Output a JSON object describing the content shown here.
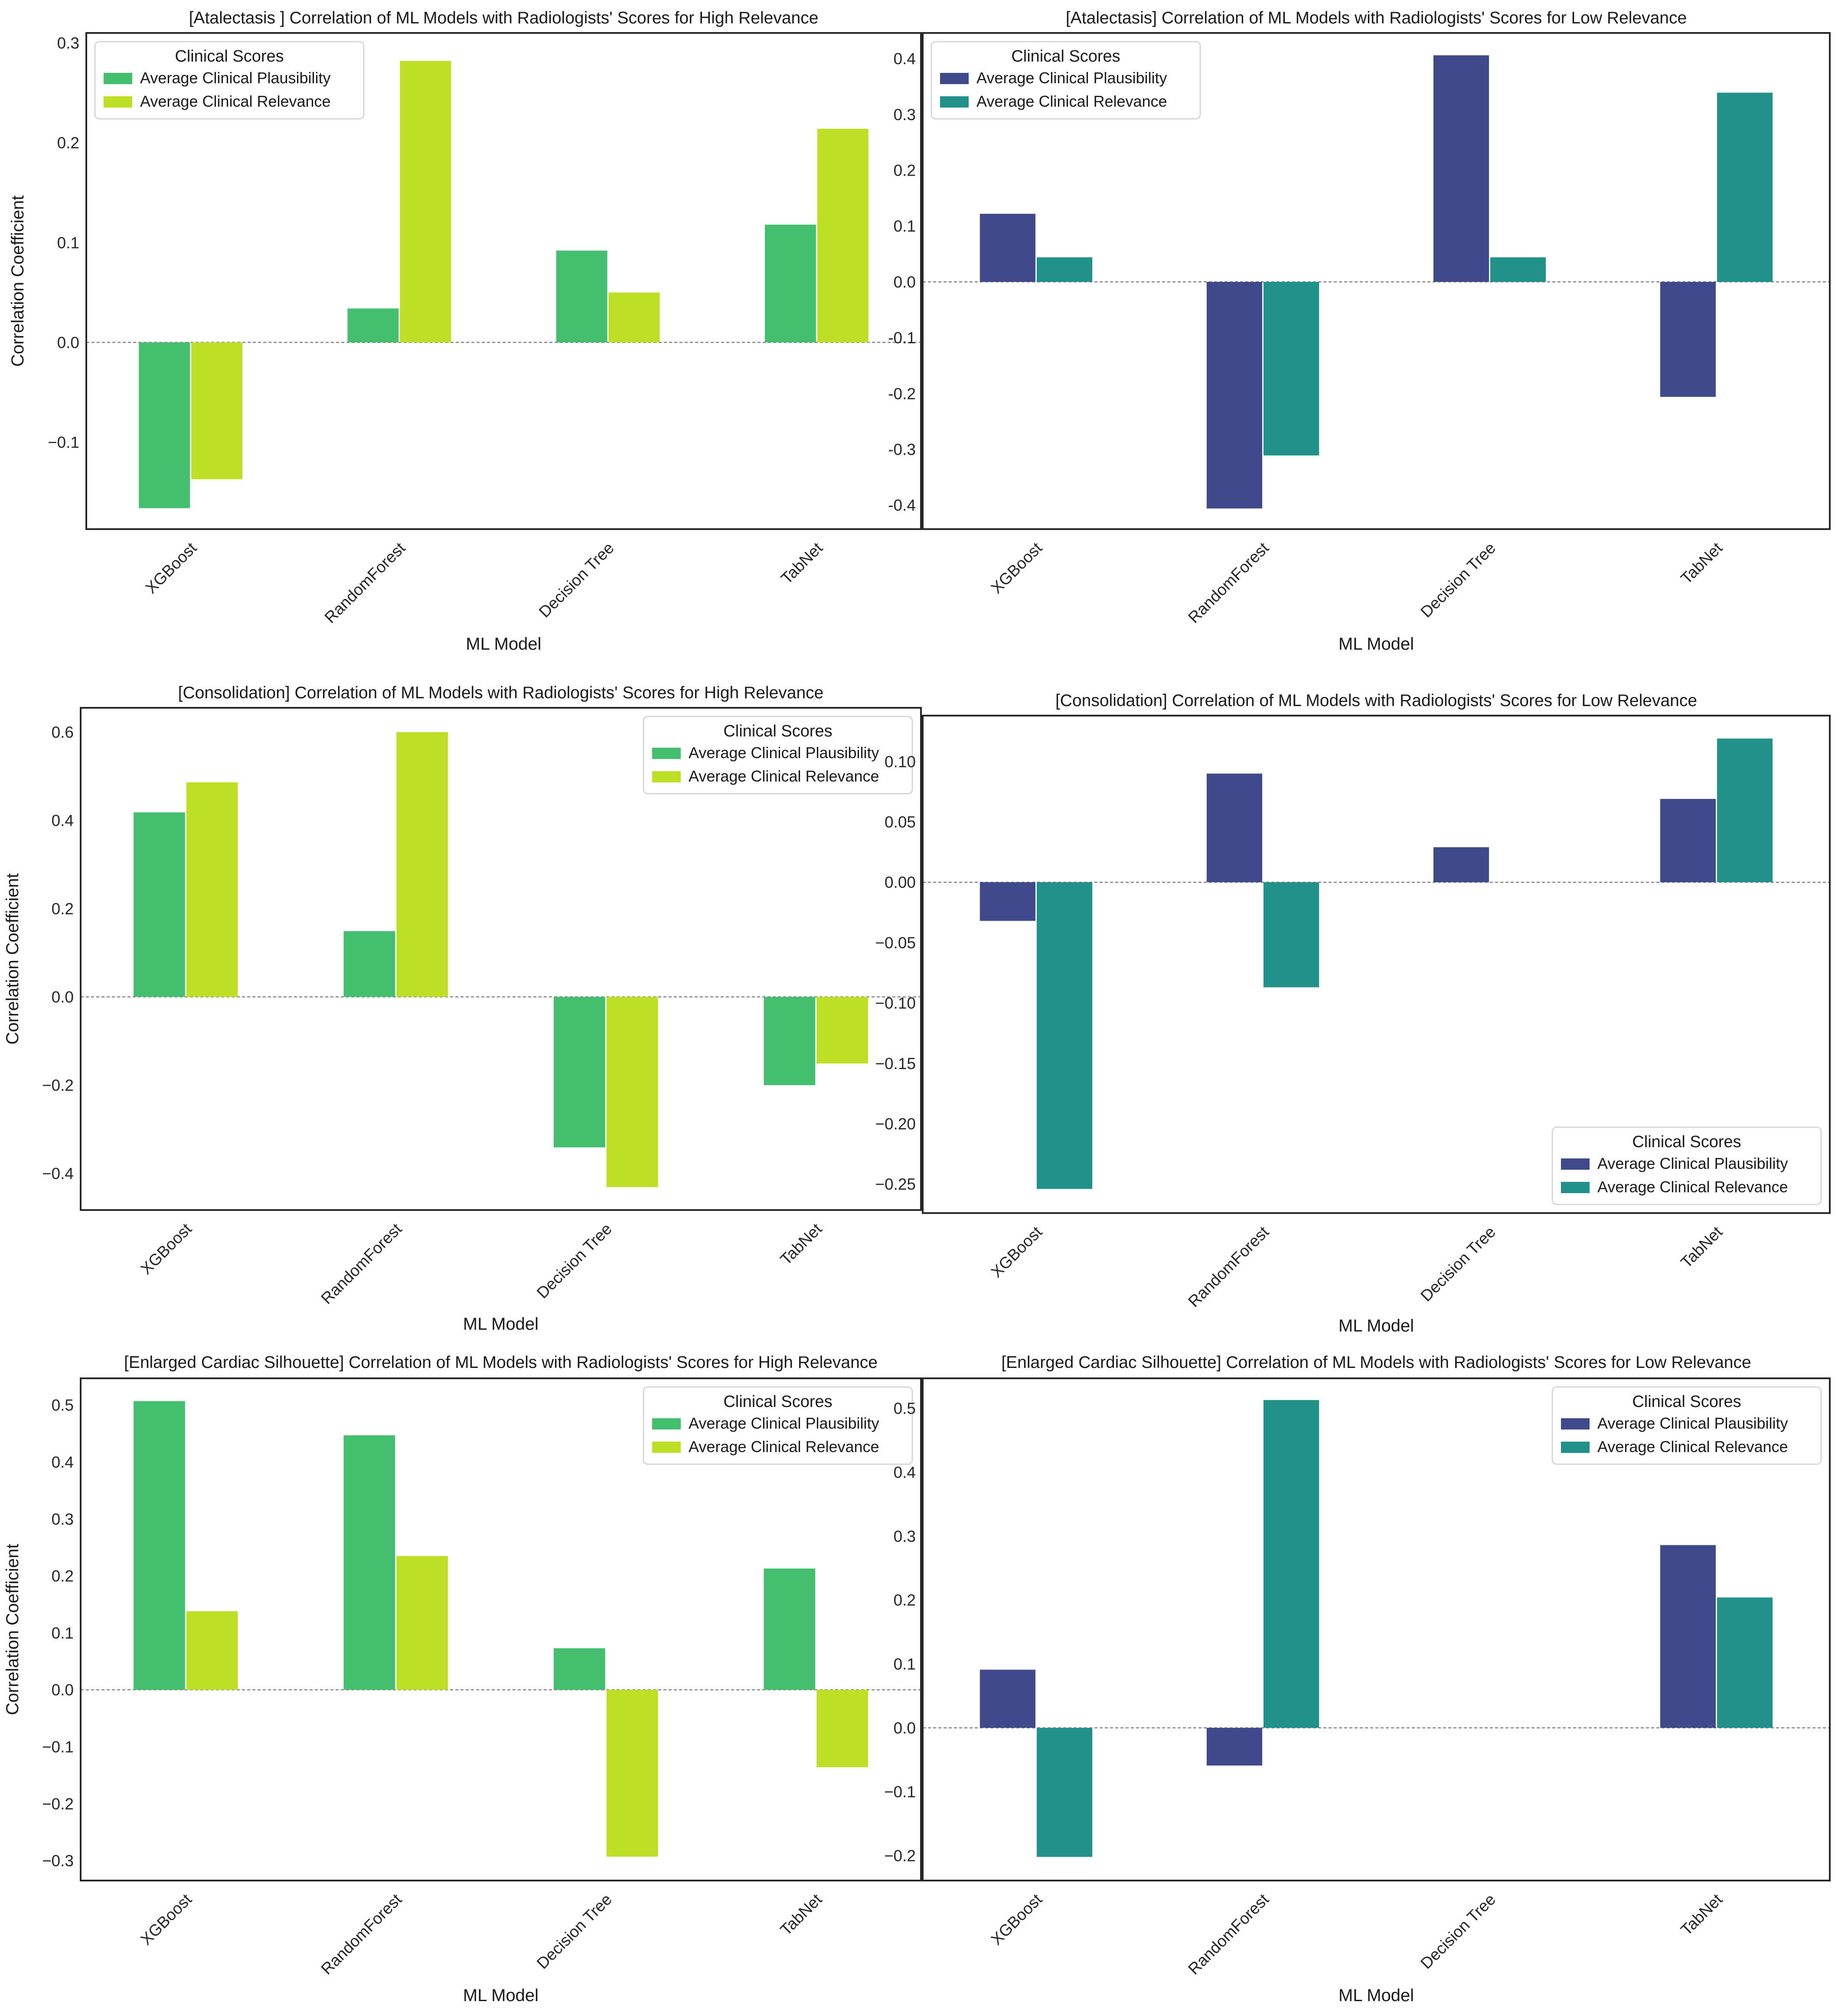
{
  "chart_data": [
    {
      "type": "bar",
      "title": "[Atalectasis ] Correlation of ML Models with Radiologists' Scores for High Relevance",
      "xlabel": "ML Model",
      "ylabel": "Correlation Coefficient",
      "categories": [
        "XGBoost",
        "RandomForest",
        "Decision Tree",
        "TabNet"
      ],
      "ylim": [
        -0.187,
        0.31
      ],
      "yticks": [
        -0.1,
        0.0,
        0.1,
        0.2,
        0.3
      ],
      "ytick_labels": [
        "−0.1",
        "0.0",
        "0.1",
        "0.2",
        "0.3"
      ],
      "legend": {
        "title": "Clinical Scores",
        "position": "top-left"
      },
      "series": [
        {
          "name": "Average Clinical Plausibility",
          "color": "#43bf6f",
          "values": [
            -0.166,
            0.034,
            0.092,
            0.118
          ]
        },
        {
          "name": "Average Clinical Relevance",
          "color": "#bddf26",
          "values": [
            -0.137,
            0.282,
            0.05,
            0.214
          ]
        }
      ]
    },
    {
      "type": "bar",
      "title": "[Atalectasis] Correlation of ML Models with Radiologists' Scores for Low Relevance",
      "xlabel": "ML Model",
      "ylabel": "",
      "categories": [
        "XGBoost",
        "RandomForest",
        "Decision Tree",
        "TabNet"
      ],
      "ylim": [
        -0.443,
        0.446
      ],
      "yticks": [
        -0.4,
        -0.3,
        -0.2,
        -0.1,
        0.0,
        0.1,
        0.2,
        0.3,
        0.4
      ],
      "ytick_labels": [
        "-0.4",
        "-0.3",
        "-0.2",
        "-0.1",
        "0.0",
        "0.1",
        "0.2",
        "0.3",
        "0.4"
      ],
      "legend": {
        "title": "Clinical Scores",
        "position": "top-left"
      },
      "series": [
        {
          "name": "Average Clinical Plausibility",
          "color": "#3e4a89",
          "values": [
            0.122,
            -0.406,
            0.406,
            -0.206
          ]
        },
        {
          "name": "Average Clinical Relevance",
          "color": "#21918c",
          "values": [
            0.044,
            -0.311,
            0.044,
            0.339
          ]
        }
      ]
    },
    {
      "type": "bar",
      "title": "[Consolidation] Correlation of ML Models with Radiologists' Scores for High Relevance",
      "xlabel": "ML Model",
      "ylabel": "Correlation Coefficient",
      "categories": [
        "XGBoost",
        "RandomForest",
        "Decision Tree",
        "TabNet"
      ],
      "ylim": [
        -0.483,
        0.655
      ],
      "yticks": [
        -0.4,
        -0.2,
        0.0,
        0.2,
        0.4,
        0.6
      ],
      "ytick_labels": [
        "−0.4",
        "−0.2",
        "0.0",
        "0.2",
        "0.4",
        "0.6"
      ],
      "legend": {
        "title": "Clinical Scores",
        "position": "top-right"
      },
      "series": [
        {
          "name": "Average Clinical Plausibility",
          "color": "#43bf6f",
          "values": [
            0.418,
            0.149,
            -0.341,
            -0.2
          ]
        },
        {
          "name": "Average Clinical Relevance",
          "color": "#bddf26",
          "values": [
            0.486,
            0.6,
            -0.431,
            -0.151
          ]
        }
      ]
    },
    {
      "type": "bar",
      "title": "[Consolidation] Correlation of ML Models with Radiologists' Scores for Low Relevance",
      "xlabel": "ML Model",
      "ylabel": "",
      "categories": [
        "XGBoost",
        "RandomForest",
        "Decision Tree",
        "TabNet"
      ],
      "ylim": [
        -0.274,
        0.138
      ],
      "yticks": [
        -0.25,
        -0.2,
        -0.15,
        -0.1,
        -0.05,
        0.0,
        0.05,
        0.1
      ],
      "ytick_labels": [
        "−0.25",
        "−0.20",
        "−0.15",
        "−0.10",
        "−0.05",
        "0.00",
        "0.05",
        "0.10"
      ],
      "legend": {
        "title": "Clinical Scores",
        "position": "bottom-right"
      },
      "series": [
        {
          "name": "Average Clinical Plausibility",
          "color": "#3e4a89",
          "values": [
            -0.032,
            0.09,
            0.029,
            0.069
          ]
        },
        {
          "name": "Average Clinical Relevance",
          "color": "#21918c",
          "values": [
            -0.254,
            -0.087,
            0.0,
            0.119
          ]
        }
      ]
    },
    {
      "type": "bar",
      "title": "[Enlarged Cardiac Silhouette] Correlation of ML Models with Radiologists' Scores for High Relevance",
      "xlabel": "ML Model",
      "ylabel": "Correlation Coefficient",
      "categories": [
        "XGBoost",
        "RandomForest",
        "Decision Tree",
        "TabNet"
      ],
      "ylim": [
        -0.335,
        0.547
      ],
      "yticks": [
        -0.3,
        -0.2,
        -0.1,
        0.0,
        0.1,
        0.2,
        0.3,
        0.4,
        0.5
      ],
      "ytick_labels": [
        "−0.3",
        "−0.2",
        "−0.1",
        "0.0",
        "0.1",
        "0.2",
        "0.3",
        "0.4",
        "0.5"
      ],
      "legend": {
        "title": "Clinical Scores",
        "position": "top-right"
      },
      "series": [
        {
          "name": "Average Clinical Plausibility",
          "color": "#43bf6f",
          "values": [
            0.507,
            0.447,
            0.073,
            0.213
          ]
        },
        {
          "name": "Average Clinical Relevance",
          "color": "#bddf26",
          "values": [
            0.138,
            0.235,
            -0.293,
            -0.136
          ]
        }
      ]
    },
    {
      "type": "bar",
      "title": "[Enlarged Cardiac Silhouette] Correlation of ML Models with Radiologists' Scores for Low Relevance",
      "xlabel": "ML Model",
      "ylabel": "",
      "categories": [
        "XGBoost",
        "RandomForest",
        "Decision Tree",
        "TabNet"
      ],
      "ylim": [
        -0.239,
        0.547
      ],
      "yticks": [
        -0.2,
        -0.1,
        0.0,
        0.1,
        0.2,
        0.3,
        0.4,
        0.5
      ],
      "ytick_labels": [
        "−0.2",
        "−0.1",
        "0.0",
        "0.1",
        "0.2",
        "0.3",
        "0.4",
        "0.5"
      ],
      "legend": {
        "title": "Clinical Scores",
        "position": "top-right"
      },
      "series": [
        {
          "name": "Average Clinical Plausibility",
          "color": "#3e4a89",
          "values": [
            0.091,
            -0.059,
            0.0,
            0.286
          ]
        },
        {
          "name": "Average Clinical Relevance",
          "color": "#21918c",
          "values": [
            -0.202,
            0.513,
            0.0,
            0.204
          ]
        }
      ]
    }
  ]
}
